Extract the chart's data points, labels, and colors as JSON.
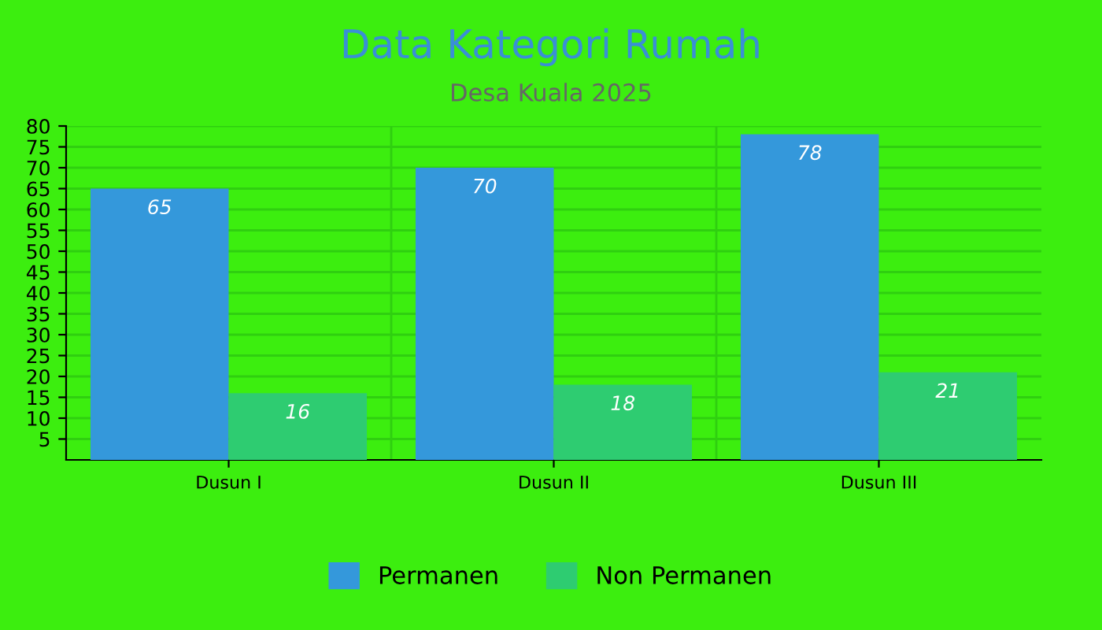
{
  "chart_data": {
    "type": "bar",
    "title": "Data Kategori Rumah",
    "subtitle": "Desa Kuala 2025",
    "categories": [
      "Dusun I",
      "Dusun II",
      "Dusun III"
    ],
    "series": [
      {
        "name": "Permanen",
        "color": "#3498db",
        "values": [
          65,
          70,
          78
        ]
      },
      {
        "name": "Non Permanen",
        "color": "#2ecc71",
        "values": [
          16,
          18,
          21
        ]
      }
    ],
    "ylim": [
      0,
      80
    ],
    "yticks": [
      5,
      10,
      15,
      20,
      25,
      30,
      35,
      40,
      45,
      50,
      55,
      60,
      65,
      70,
      75,
      80
    ],
    "grid": true,
    "legend": "bottom",
    "data_labels": true
  }
}
